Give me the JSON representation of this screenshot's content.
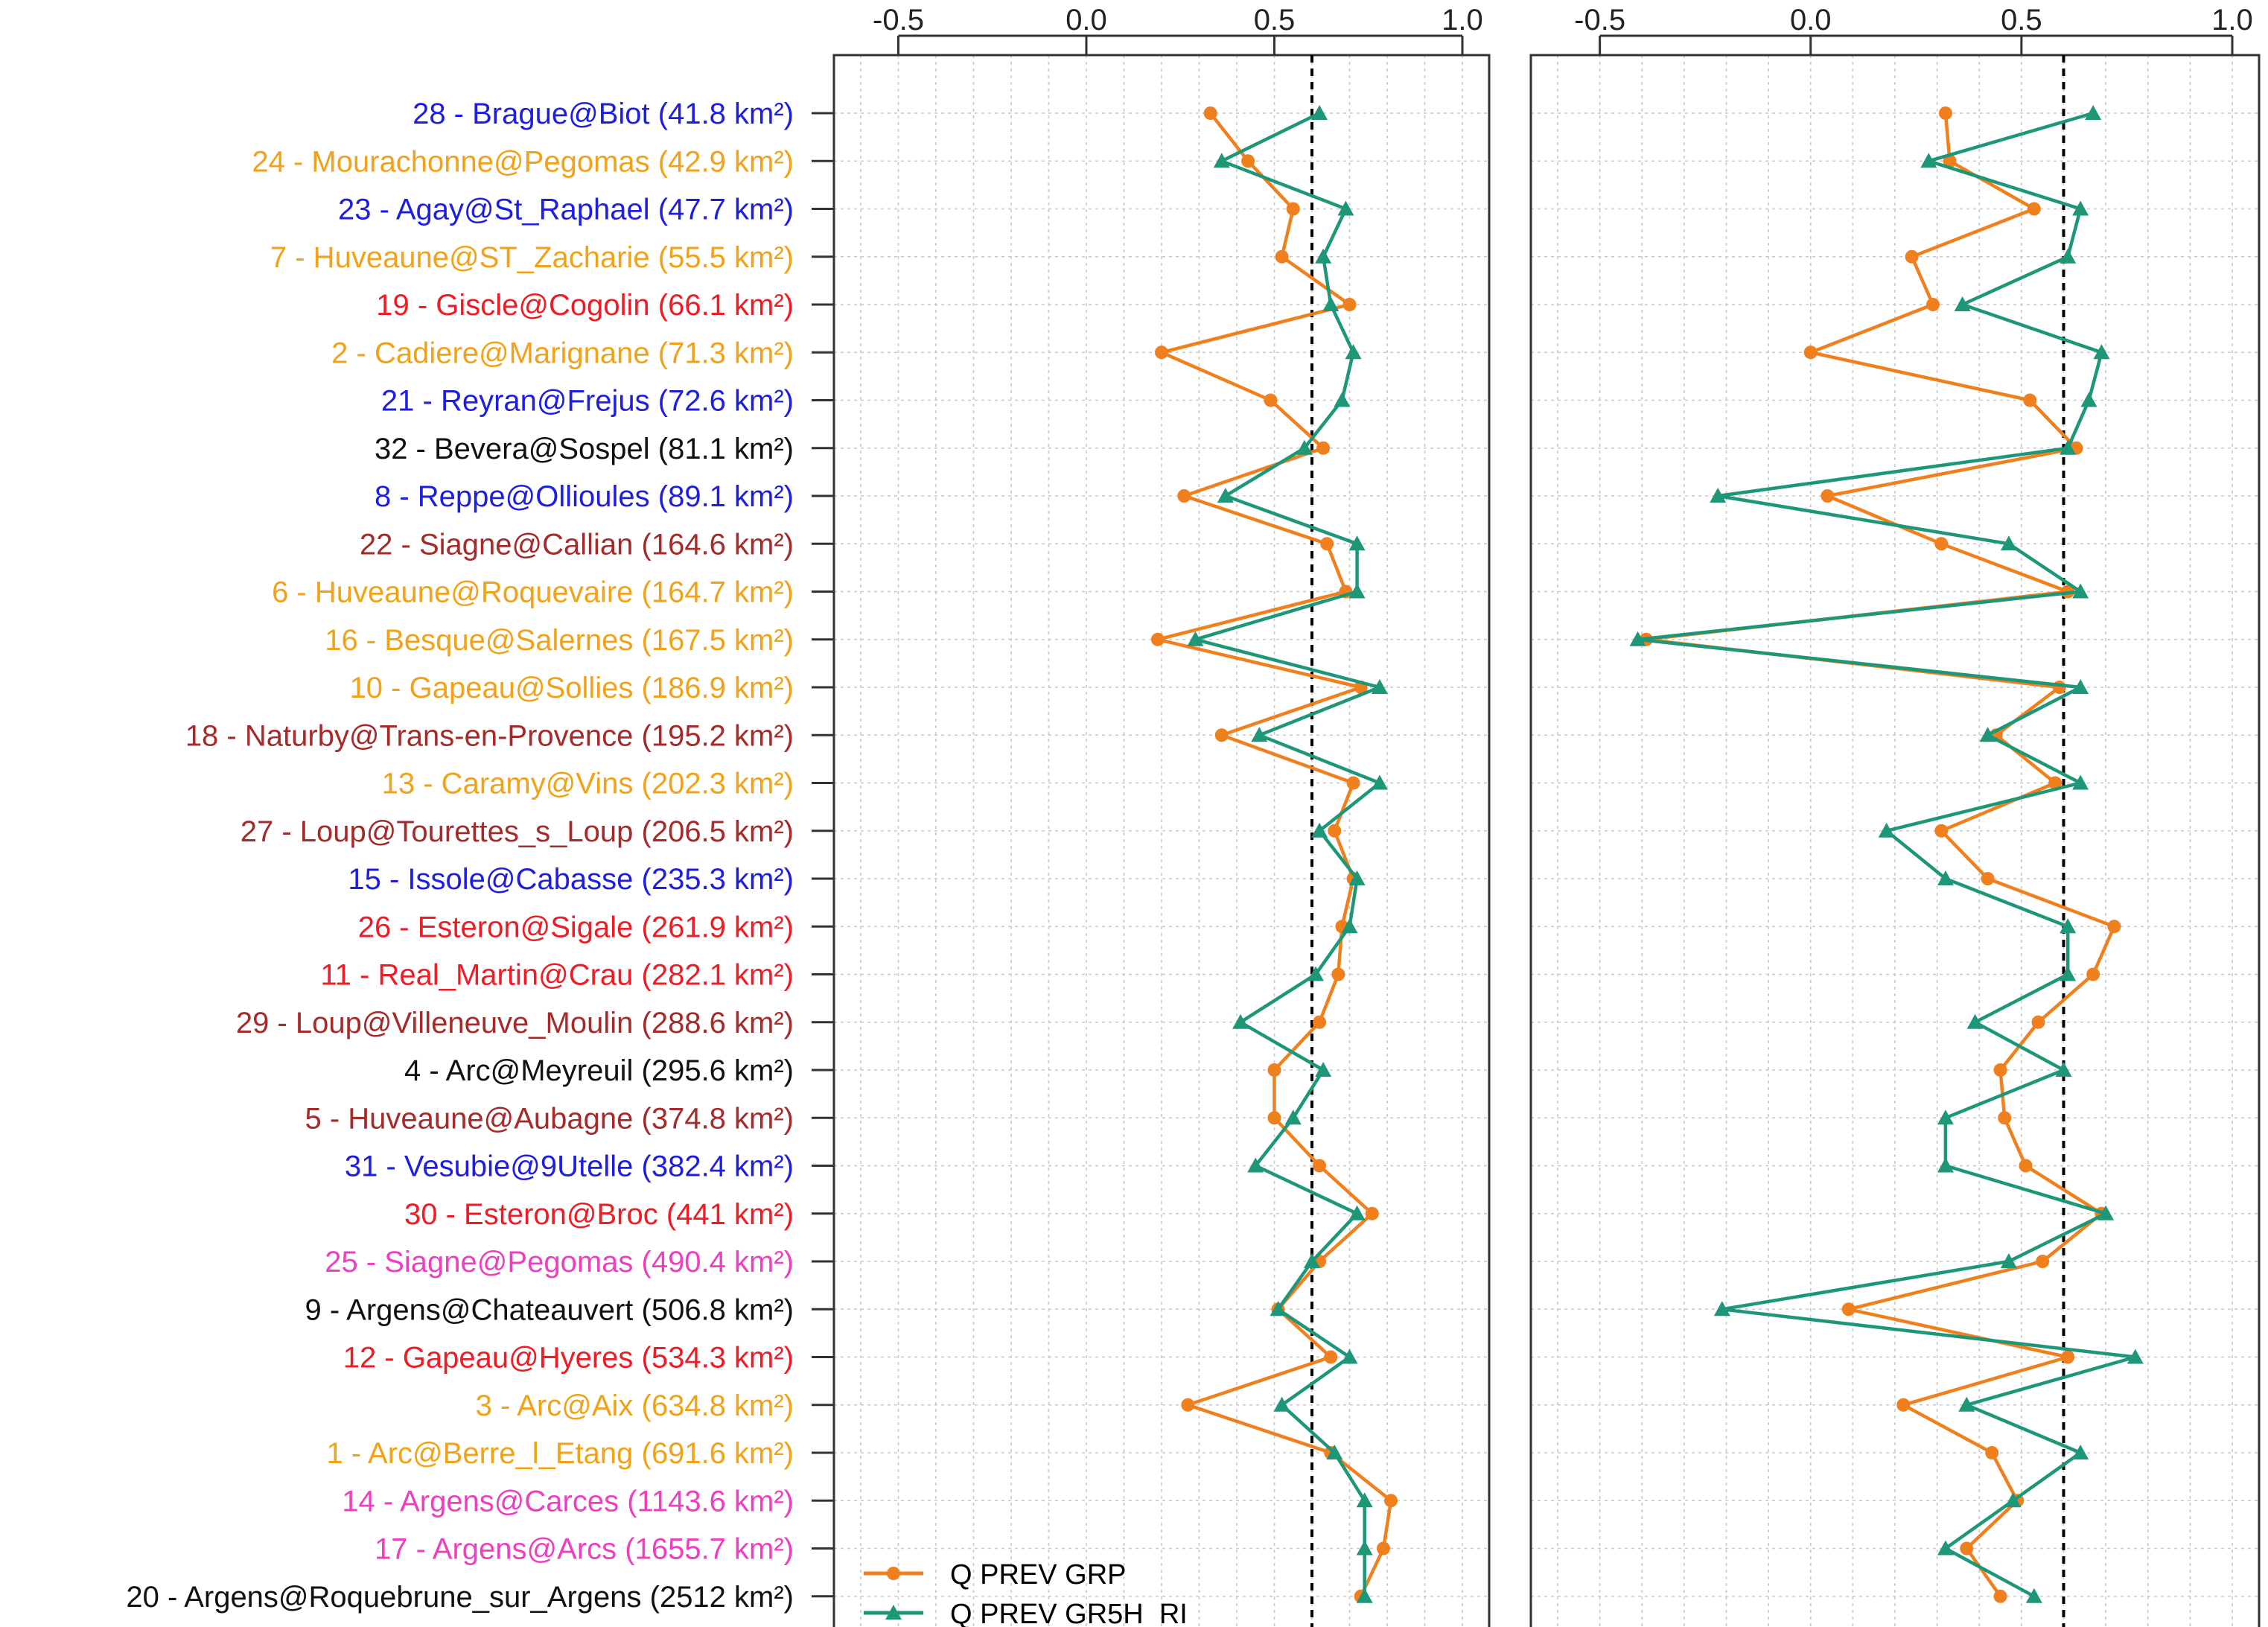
{
  "chart_data": {
    "type": "line",
    "orientation": "vertical-categories",
    "categories": [
      {
        "label": "28 - Brague@Biot (41.8 km²)",
        "color": "#1e1ee0"
      },
      {
        "label": "24 - Mourachonne@Pegomas (42.9 km²)",
        "color": "#f0a21a"
      },
      {
        "label": "23 - Agay@St_Raphael (47.7 km²)",
        "color": "#1e1ee0"
      },
      {
        "label": "7 - Huveaune@ST_Zacharie (55.5 km²)",
        "color": "#f0a21a"
      },
      {
        "label": "19 - Giscle@Cogolin (66.1 km²)",
        "color": "#ee1c24"
      },
      {
        "label": "2 - Cadiere@Marignane (71.3 km²)",
        "color": "#f0a21a"
      },
      {
        "label": "21 - Reyran@Frejus (72.6 km²)",
        "color": "#1e1ee0"
      },
      {
        "label": "32 - Bevera@Sospel (81.1 km²)",
        "color": "#111111"
      },
      {
        "label": "8 - Reppe@Ollioules (89.1 km²)",
        "color": "#1e1ee0"
      },
      {
        "label": "22 - Siagne@Callian (164.6 km²)",
        "color": "#a52a2a"
      },
      {
        "label": "6 - Huveaune@Roquevaire (164.7 km²)",
        "color": "#f0a21a"
      },
      {
        "label": "16 - Besque@Salernes (167.5 km²)",
        "color": "#f0a21a"
      },
      {
        "label": "10 - Gapeau@Sollies (186.9 km²)",
        "color": "#f0a21a"
      },
      {
        "label": "18 - Naturby@Trans-en-Provence (195.2 km²)",
        "color": "#a52a2a"
      },
      {
        "label": "13 - Caramy@Vins (202.3 km²)",
        "color": "#f0a21a"
      },
      {
        "label": "27 - Loup@Tourettes_s_Loup (206.5 km²)",
        "color": "#a52a2a"
      },
      {
        "label": "15 - Issole@Cabasse (235.3 km²)",
        "color": "#1e1ee0"
      },
      {
        "label": "26 - Esteron@Sigale (261.9 km²)",
        "color": "#ee1c24"
      },
      {
        "label": "11 - Real_Martin@Crau (282.1 km²)",
        "color": "#ee1c24"
      },
      {
        "label": "29 - Loup@Villeneuve_Moulin (288.6 km²)",
        "color": "#a52a2a"
      },
      {
        "label": "4 - Arc@Meyreuil (295.6 km²)",
        "color": "#111111"
      },
      {
        "label": "5 - Huveaune@Aubagne (374.8 km²)",
        "color": "#a52a2a"
      },
      {
        "label": "31 - Vesubie@9Utelle (382.4 km²)",
        "color": "#1e1ee0"
      },
      {
        "label": "30 - Esteron@Broc (441 km²)",
        "color": "#ee1c24"
      },
      {
        "label": "25 - Siagne@Pegomas (490.4 km²)",
        "color": "#ee3fbf"
      },
      {
        "label": "9 - Argens@Chateauvert (506.8 km²)",
        "color": "#111111"
      },
      {
        "label": "12 - Gapeau@Hyeres (534.3 km²)",
        "color": "#ee1c24"
      },
      {
        "label": "3 - Arc@Aix (634.8 km²)",
        "color": "#f0a21a"
      },
      {
        "label": "1 - Arc@Berre_l_Etang (691.6 km²)",
        "color": "#f0a21a"
      },
      {
        "label": "14 - Argens@Carces (1143.6 km²)",
        "color": "#ee3fbf"
      },
      {
        "label": "17 - Argens@Arcs (1655.7 km²)",
        "color": "#ee3fbf"
      },
      {
        "label": "20 - Argens@Roquebrune_sur_Argens (2512 km²)",
        "color": "#111111"
      }
    ],
    "panels": [
      {
        "xlim": [
          -0.6,
          1.0
        ],
        "ticks": [
          -0.5,
          0.0,
          0.5,
          1.0
        ],
        "tick_labels": [
          "-0.5",
          "0.0",
          "0.5",
          "1.0"
        ],
        "reference_line": 0.6,
        "series": [
          {
            "name": "Q PREV GRP",
            "color": "#f07f1e",
            "marker": "circle",
            "values": [
              0.33,
              0.43,
              0.55,
              0.52,
              0.7,
              0.2,
              0.49,
              0.63,
              0.26,
              0.64,
              0.69,
              0.19,
              0.73,
              0.36,
              0.71,
              0.66,
              0.71,
              0.68,
              0.67,
              0.62,
              0.5,
              0.5,
              0.62,
              0.76,
              0.62,
              0.51,
              0.65,
              0.27,
              0.65,
              0.81,
              0.79,
              0.73
            ]
          },
          {
            "name": "Q PREV GR5H_RI",
            "color": "#1e9678",
            "marker": "triangle",
            "values": [
              0.62,
              0.36,
              0.69,
              0.63,
              0.65,
              0.71,
              0.68,
              0.58,
              0.37,
              0.72,
              0.72,
              0.29,
              0.78,
              0.46,
              0.78,
              0.62,
              0.72,
              0.7,
              0.61,
              0.41,
              0.63,
              0.55,
              0.45,
              0.72,
              0.6,
              0.51,
              0.7,
              0.52,
              0.66,
              0.74,
              0.74,
              0.74
            ]
          }
        ]
      },
      {
        "xlim": [
          -0.6,
          1.0
        ],
        "ticks": [
          -0.5,
          0.0,
          0.5,
          1.0
        ],
        "tick_labels": [
          "-0.5",
          "0.0",
          "0.5",
          "1.0"
        ],
        "reference_line": 0.6,
        "series": [
          {
            "name": "Q PREV GRP",
            "color": "#f07f1e",
            "marker": "circle",
            "values": [
              0.32,
              0.33,
              0.53,
              0.24,
              0.29,
              0.0,
              0.52,
              0.63,
              0.04,
              0.31,
              0.61,
              -0.39,
              0.59,
              0.44,
              0.58,
              0.31,
              0.42,
              0.72,
              0.67,
              0.54,
              0.45,
              0.46,
              0.51,
              0.69,
              0.55,
              0.09,
              0.61,
              0.22,
              0.43,
              0.49,
              0.37,
              0.45
            ]
          },
          {
            "name": "Q PREV GR5H_RI",
            "color": "#1e9678",
            "marker": "triangle",
            "values": [
              0.67,
              0.28,
              0.64,
              0.61,
              0.36,
              0.69,
              0.66,
              0.61,
              -0.22,
              0.47,
              0.64,
              -0.41,
              0.64,
              0.42,
              0.64,
              0.18,
              0.32,
              0.61,
              0.61,
              0.39,
              0.6,
              0.32,
              0.32,
              0.7,
              0.47,
              -0.21,
              0.77,
              0.37,
              0.64,
              0.48,
              0.32,
              0.53
            ]
          }
        ]
      }
    ],
    "legend": {
      "placement": "bottom-left",
      "entries": [
        "Q PREV GRP",
        "Q PREV GR5H_RI"
      ]
    }
  }
}
